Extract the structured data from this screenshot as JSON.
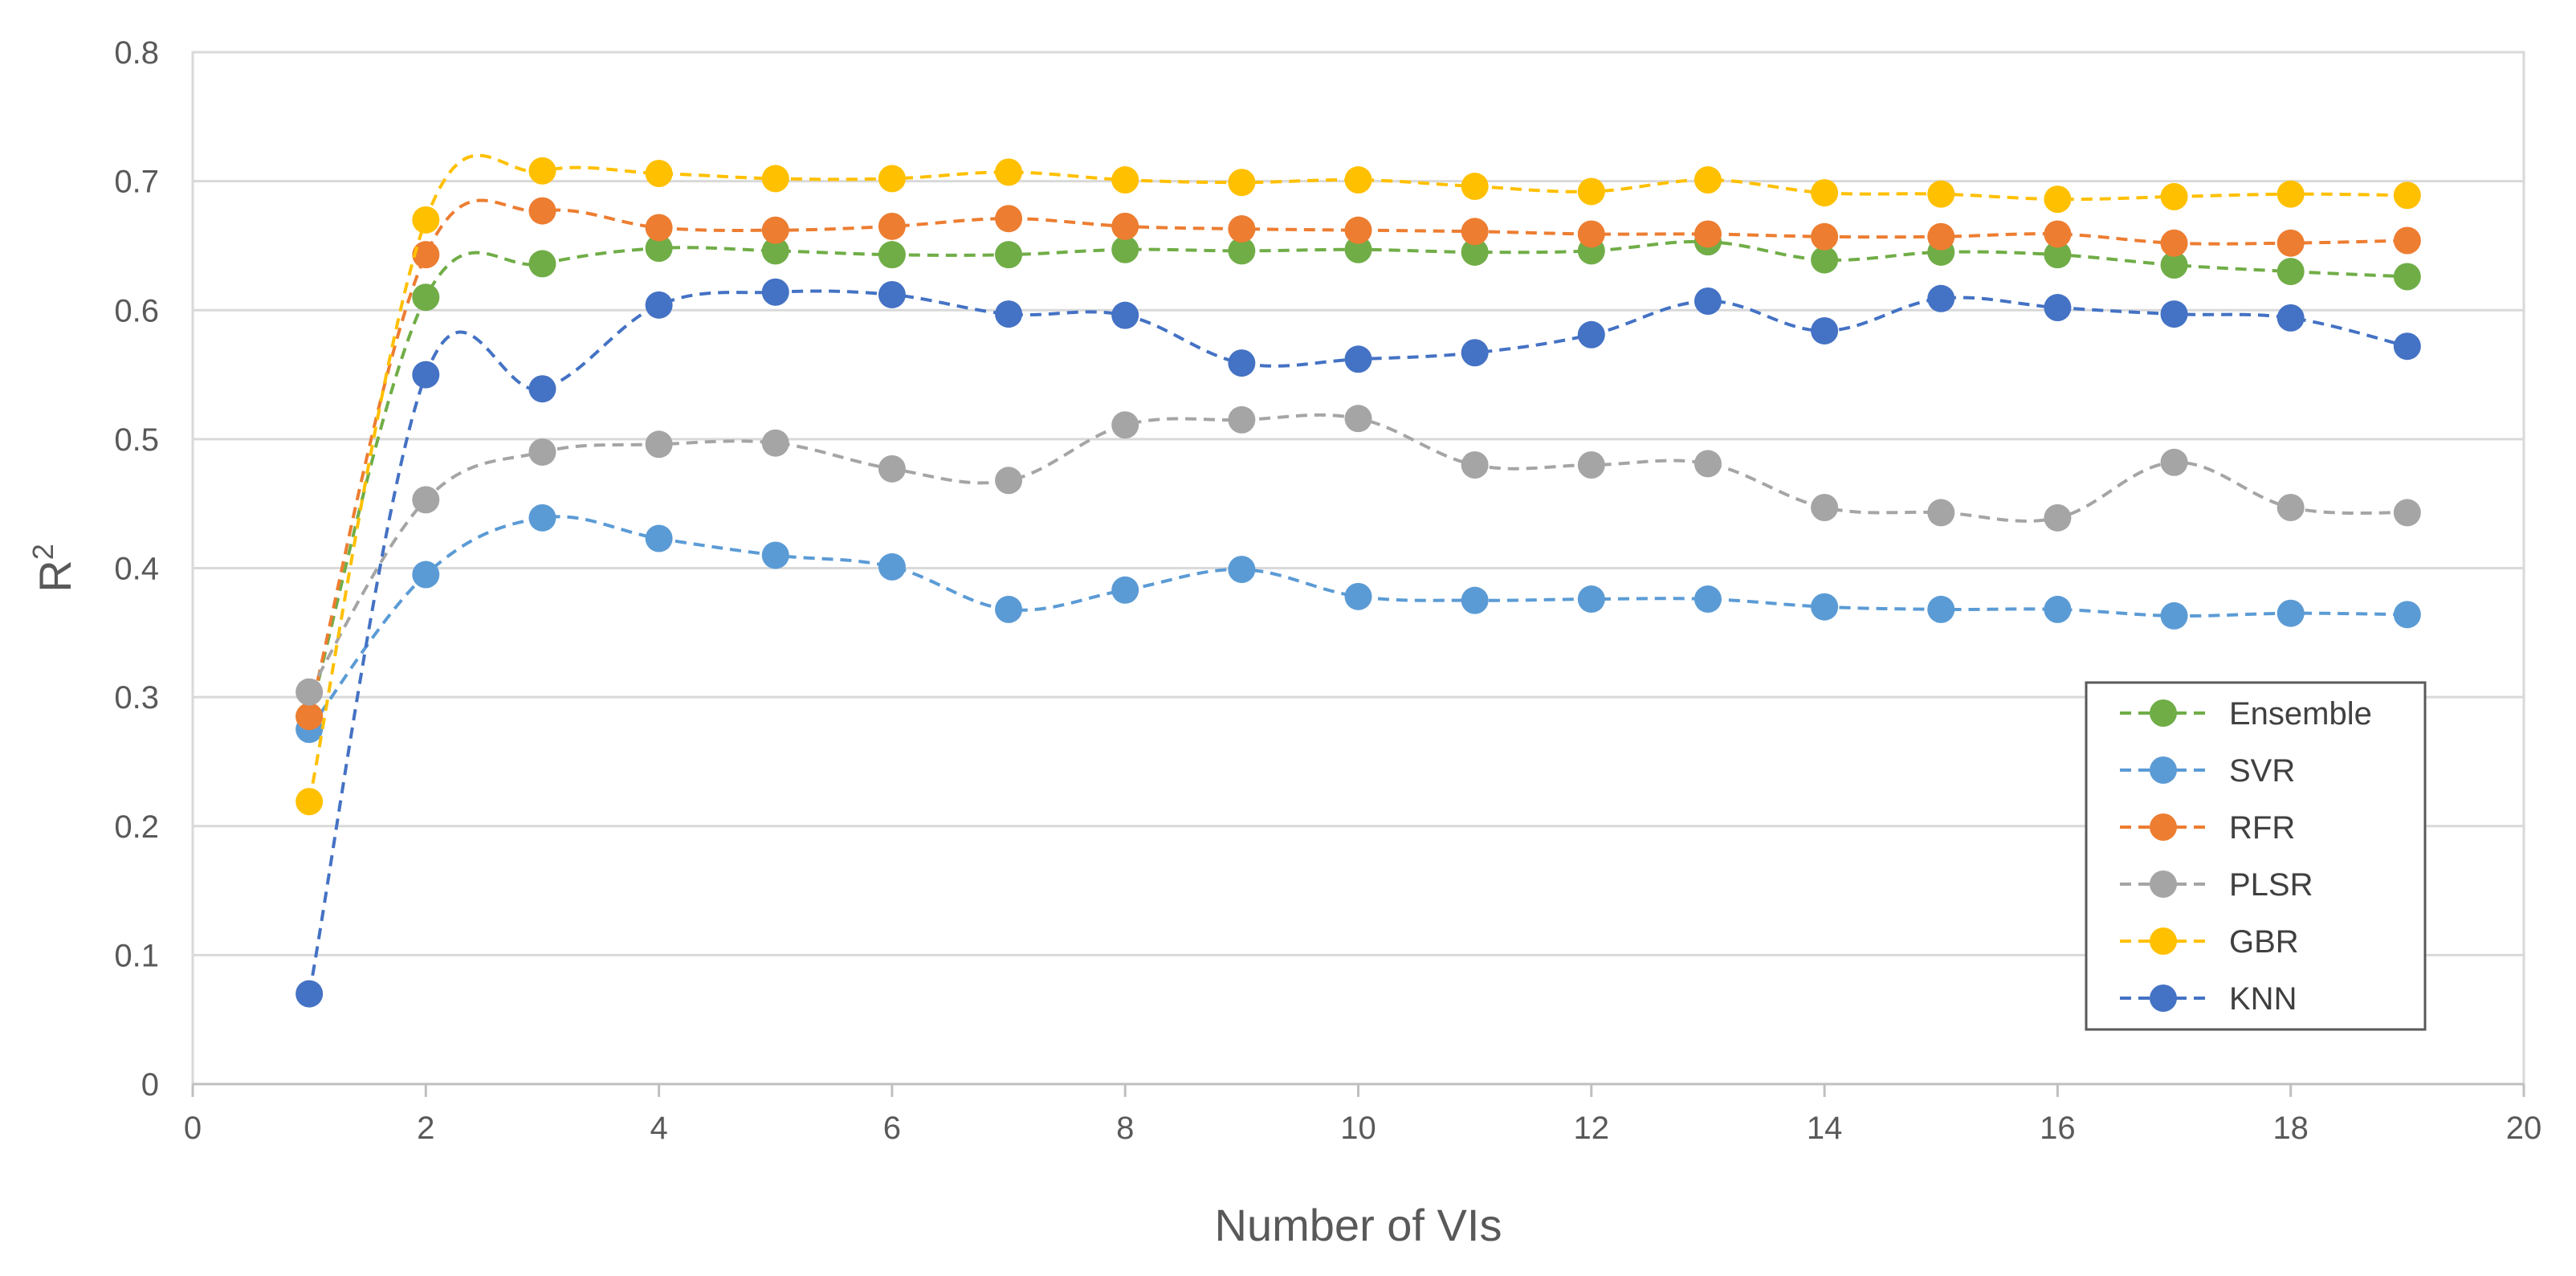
{
  "chart_data": {
    "type": "line",
    "xlabel": "Number of VIs",
    "ylabel": "R",
    "ylabel_superscript": "2",
    "xlim": [
      0,
      20
    ],
    "ylim": [
      0,
      0.8
    ],
    "xticks": [
      "0",
      "2",
      "4",
      "6",
      "8",
      "10",
      "12",
      "14",
      "16",
      "18",
      "20"
    ],
    "yticks": [
      "0",
      "0.1",
      "0.2",
      "0.3",
      "0.4",
      "0.5",
      "0.6",
      "0.7",
      "0.8"
    ],
    "grid": "horizontal",
    "legend_position": "right",
    "line_style": "dashed, smoothed, with circle markers",
    "x": [
      1,
      2,
      3,
      4,
      5,
      6,
      7,
      8,
      9,
      10,
      11,
      12,
      13,
      14,
      15,
      16,
      17,
      18,
      19
    ],
    "series": [
      {
        "name": "Ensemble",
        "color": "#70ad47",
        "values": [
          0.285,
          0.61,
          0.636,
          0.648,
          0.646,
          0.643,
          0.643,
          0.647,
          0.646,
          0.647,
          0.645,
          0.646,
          0.653,
          0.639,
          0.645,
          0.643,
          0.635,
          0.63,
          0.626
        ]
      },
      {
        "name": "SVR",
        "color": "#5b9bd5",
        "values": [
          0.275,
          0.395,
          0.439,
          0.423,
          0.41,
          0.401,
          0.368,
          0.383,
          0.399,
          0.378,
          0.375,
          0.376,
          0.376,
          0.37,
          0.368,
          0.368,
          0.363,
          0.365,
          0.364
        ]
      },
      {
        "name": "RFR",
        "color": "#ed7d31",
        "values": [
          0.285,
          0.643,
          0.677,
          0.664,
          0.662,
          0.665,
          0.671,
          0.665,
          0.663,
          0.662,
          0.661,
          0.659,
          0.659,
          0.657,
          0.657,
          0.659,
          0.652,
          0.652,
          0.654
        ]
      },
      {
        "name": "PLSR",
        "color": "#a5a5a5",
        "values": [
          0.304,
          0.453,
          0.49,
          0.496,
          0.497,
          0.477,
          0.468,
          0.511,
          0.515,
          0.516,
          0.48,
          0.48,
          0.481,
          0.447,
          0.443,
          0.439,
          0.482,
          0.447,
          0.443
        ]
      },
      {
        "name": "GBR",
        "color": "#ffc000",
        "values": [
          0.219,
          0.67,
          0.708,
          0.706,
          0.702,
          0.702,
          0.707,
          0.701,
          0.699,
          0.701,
          0.696,
          0.692,
          0.701,
          0.691,
          0.69,
          0.686,
          0.688,
          0.69,
          0.689
        ]
      },
      {
        "name": "KNN",
        "color": "#4472c4",
        "values": [
          0.07,
          0.55,
          0.539,
          0.604,
          0.614,
          0.612,
          0.597,
          0.596,
          0.559,
          0.562,
          0.567,
          0.581,
          0.607,
          0.584,
          0.609,
          0.602,
          0.597,
          0.594,
          0.572
        ]
      }
    ]
  }
}
